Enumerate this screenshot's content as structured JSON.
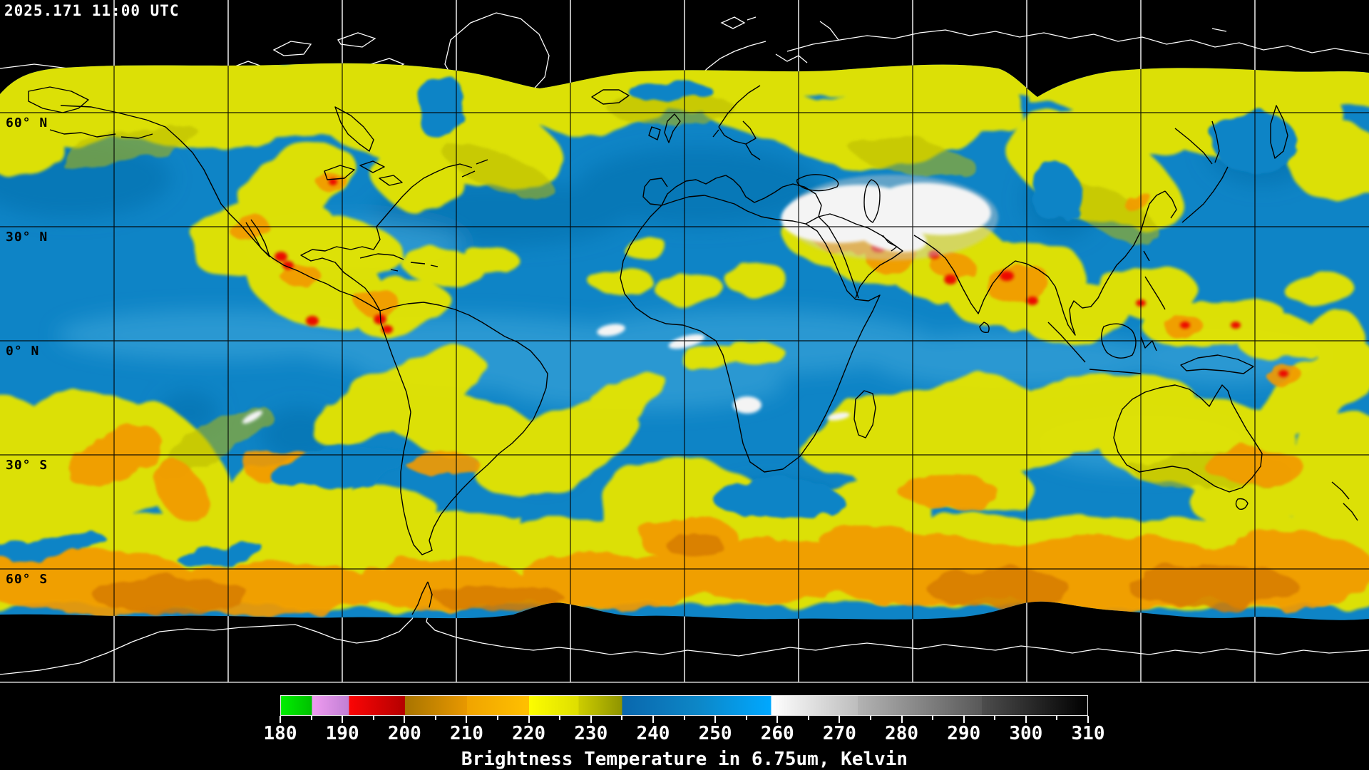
{
  "header": {
    "timestamp": "2025.171 11:00 UTC"
  },
  "map": {
    "latitude_labels": [
      {
        "value": 60,
        "label": "60° N"
      },
      {
        "value": 30,
        "label": "30° N"
      },
      {
        "value": 0,
        "label": "0° N"
      },
      {
        "value": -30,
        "label": "30° S"
      },
      {
        "value": -60,
        "label": "60° S"
      }
    ],
    "grid": {
      "lat_step_deg": 30,
      "lon_step_deg": 30
    }
  },
  "colorbar": {
    "caption": "Brightness Temperature in 6.75um, Kelvin",
    "min": 180,
    "max": 310,
    "minor_tick_step": 5,
    "major_ticks": [
      180,
      190,
      200,
      210,
      220,
      230,
      240,
      250,
      260,
      270,
      280,
      290,
      300,
      310
    ],
    "segments": [
      {
        "from": 180,
        "to": 185,
        "from_color": "#00ee00",
        "to_color": "#00c000"
      },
      {
        "from": 185,
        "to": 191,
        "from_color": "#f09cf0",
        "to_color": "#c07fd4"
      },
      {
        "from": 191,
        "to": 200,
        "from_color": "#fb0505",
        "to_color": "#b40000"
      },
      {
        "from": 200,
        "to": 210,
        "from_color": "#a87400",
        "to_color": "#e89800"
      },
      {
        "from": 210,
        "to": 220,
        "from_color": "#f0a400",
        "to_color": "#ffc000"
      },
      {
        "from": 220,
        "to": 228,
        "from_color": "#fdfd00",
        "to_color": "#dede00"
      },
      {
        "from": 228,
        "to": 235,
        "from_color": "#cdcd00",
        "to_color": "#8f9400"
      },
      {
        "from": 235,
        "to": 247,
        "from_color": "#0a67ad",
        "to_color": "#0d86c6"
      },
      {
        "from": 247,
        "to": 259,
        "from_color": "#0d86c6",
        "to_color": "#00a8ff"
      },
      {
        "from": 259,
        "to": 273,
        "from_color": "#ffffff",
        "to_color": "#bdbdbd"
      },
      {
        "from": 273,
        "to": 293,
        "from_color": "#b3b3b3",
        "to_color": "#585858"
      },
      {
        "from": 293,
        "to": 310,
        "from_color": "#4d4d4d",
        "to_color": "#000000"
      }
    ]
  },
  "chart_data": {
    "type": "heatmap",
    "title": "Brightness Temperature in 6.75um, Kelvin",
    "timestamp": "2025.171 11:00 UTC",
    "units": "Kelvin",
    "wavelength_um": 6.75,
    "scale_min": 180,
    "scale_max": 310,
    "scale_ticks": [
      180,
      190,
      200,
      210,
      220,
      230,
      240,
      250,
      260,
      270,
      280,
      290,
      300,
      310
    ],
    "latitude_gridlines_deg": [
      60,
      30,
      0,
      -30,
      -60
    ],
    "longitude_grid_step_deg": 30,
    "legend_position": "bottom"
  }
}
